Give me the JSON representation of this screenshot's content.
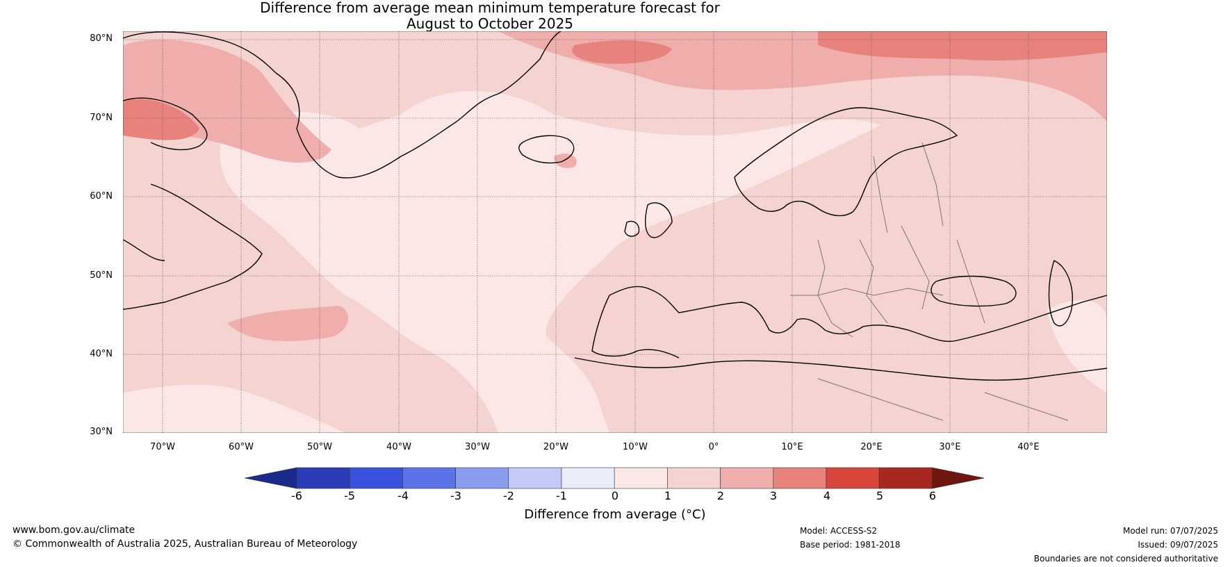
{
  "title": {
    "line1": "Difference from average mean minimum temperature forecast for",
    "line2": "August to October 2025"
  },
  "map": {
    "lat_labels": [
      "80°N",
      "70°N",
      "60°N",
      "50°N",
      "40°N",
      "30°N"
    ],
    "lon_labels": [
      "70°W",
      "60°W",
      "50°W",
      "40°W",
      "30°W",
      "20°W",
      "10°W",
      "0°",
      "10°E",
      "20°E",
      "30°E",
      "40°E"
    ],
    "lat_range": [
      30,
      80
    ],
    "lon_range": [
      -75,
      50
    ],
    "grid": true
  },
  "colorbar": {
    "tick_labels": [
      "-6",
      "-5",
      "-4",
      "-3",
      "-2",
      "-1",
      "0",
      "1",
      "2",
      "3",
      "4",
      "5",
      "6"
    ],
    "colors": [
      "#1a2a8a",
      "#2a3cb8",
      "#3a52e0",
      "#5c72e8",
      "#8a9ced",
      "#c2cbf4",
      "#e9edfb",
      "#fbe8e6",
      "#f5d3d1",
      "#efaeab",
      "#e8827c",
      "#d8463c",
      "#a8271f",
      "#701810"
    ],
    "label": "Difference from average (°C)"
  },
  "footer": {
    "website": "www.bom.gov.au/climate",
    "copyright": "© Commonwealth of Australia 2025, Australian Bureau of Meteorology",
    "model": "Model: ACCESS-S2",
    "base_period": "Base period: 1981-2018",
    "model_run": "Model run: 07/07/2025",
    "issued": "Issued: 09/07/2025",
    "disclaimer": "Boundaries are not considered authoritative"
  }
}
